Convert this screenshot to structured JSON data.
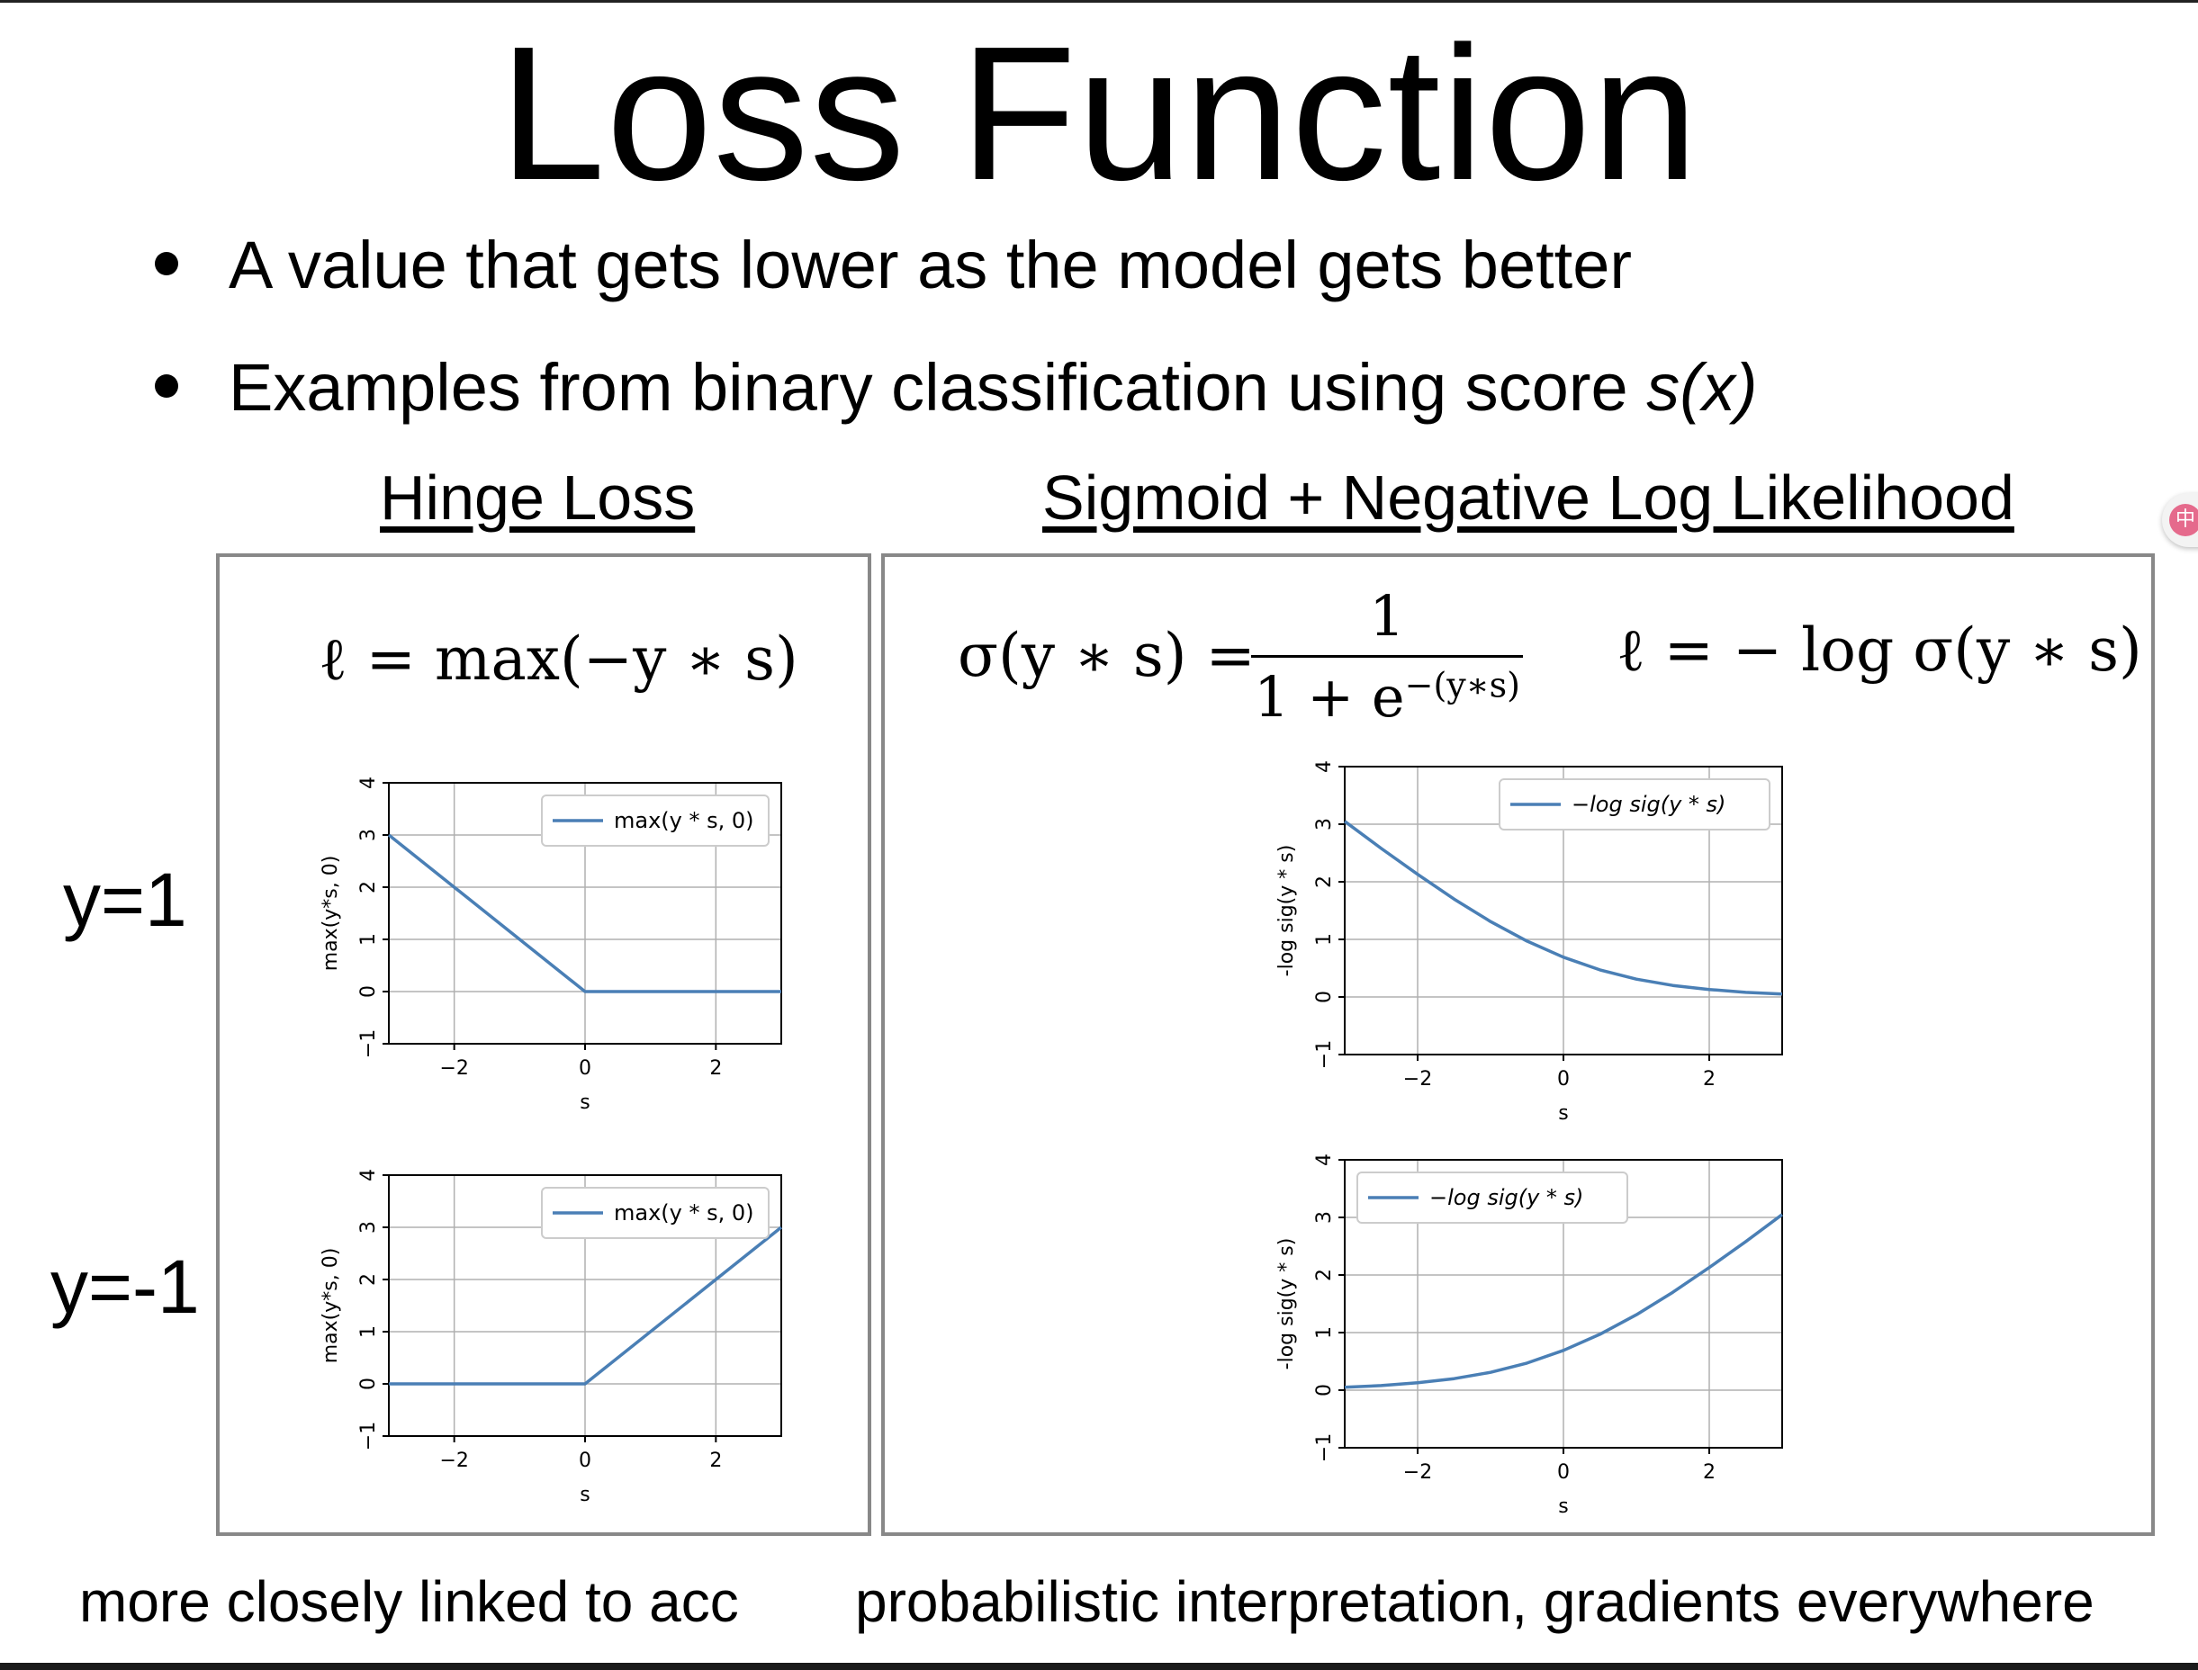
{
  "slide": {
    "title": "Loss Function",
    "bullets": [
      {
        "text": "A value that gets lower as the model gets better",
        "emphasis": ""
      },
      {
        "text": "Examples from binary classification using score ",
        "emphasis": "s(x)"
      }
    ]
  },
  "hinge": {
    "heading": "Hinge Loss",
    "formula": "ℓ = max(−y ∗ s)",
    "footer": "more closely linked to acc"
  },
  "sigmoid": {
    "heading": "Sigmoid + Negative Log Likelihood",
    "formula_left": "σ(y ∗ s) =",
    "formula_num": "1",
    "formula_den": "1 + e",
    "formula_den_exp": "−(y∗s)",
    "formula_right": "ℓ = − log σ(y ∗ s)",
    "footer": "probabilistic interpretation, gradients everywhere"
  },
  "row_labels": {
    "top": "y=1",
    "bottom": "y=-1"
  },
  "side_widget": {
    "icon": "translate-icon",
    "glyph": "中"
  },
  "colors": {
    "line": "#4a7fb5",
    "grid": "#b0b0b0",
    "panel_border": "#888888"
  },
  "chart_data": [
    {
      "type": "line",
      "panel": "hinge-top",
      "xlabel": "s",
      "ylabel": "max(y*s, 0)",
      "xlim": [
        -3,
        3
      ],
      "ylim": [
        -1,
        4
      ],
      "xticks": [
        -2,
        0,
        2
      ],
      "yticks": [
        -1,
        0,
        1,
        2,
        3,
        4
      ],
      "xtick_labels": [
        "−2",
        "0",
        "2"
      ],
      "ytick_labels": [
        "−1",
        "0",
        "1",
        "2",
        "3",
        "4"
      ],
      "grid": true,
      "legend_position": "upper-right",
      "series": [
        {
          "name": "max(y * s, 0)",
          "x": [
            -3,
            0,
            3
          ],
          "y": [
            3,
            0,
            0
          ]
        }
      ]
    },
    {
      "type": "line",
      "panel": "hinge-bottom",
      "xlabel": "s",
      "ylabel": "max(y*s, 0)",
      "xlim": [
        -3,
        3
      ],
      "ylim": [
        -1,
        4
      ],
      "xticks": [
        -2,
        0,
        2
      ],
      "yticks": [
        -1,
        0,
        1,
        2,
        3,
        4
      ],
      "xtick_labels": [
        "−2",
        "0",
        "2"
      ],
      "ytick_labels": [
        "−1",
        "0",
        "1",
        "2",
        "3",
        "4"
      ],
      "grid": true,
      "legend_position": "upper-right",
      "series": [
        {
          "name": "max(y * s, 0)",
          "x": [
            -3,
            0,
            3
          ],
          "y": [
            0,
            0,
            3
          ]
        }
      ]
    },
    {
      "type": "line",
      "panel": "sigmoid-top",
      "xlabel": "s",
      "ylabel": "-log sig(y * s)",
      "xlim": [
        -3,
        3
      ],
      "ylim": [
        -1,
        4
      ],
      "xticks": [
        -2,
        0,
        2
      ],
      "yticks": [
        -1,
        0,
        1,
        2,
        3,
        4
      ],
      "xtick_labels": [
        "−2",
        "0",
        "2"
      ],
      "ytick_labels": [
        "−1",
        "0",
        "1",
        "2",
        "3",
        "4"
      ],
      "grid": true,
      "legend_position": "upper-right",
      "series": [
        {
          "name": "−log sig(y * s)",
          "x": [
            -3,
            -2.5,
            -2,
            -1.5,
            -1,
            -0.5,
            0,
            0.5,
            1,
            1.5,
            2,
            2.5,
            3
          ],
          "y": [
            3.05,
            2.58,
            2.13,
            1.7,
            1.31,
            0.97,
            0.69,
            0.47,
            0.31,
            0.2,
            0.13,
            0.08,
            0.05
          ]
        }
      ]
    },
    {
      "type": "line",
      "panel": "sigmoid-bottom",
      "xlabel": "s",
      "ylabel": "-log sig(y * s)",
      "xlim": [
        -3,
        3
      ],
      "ylim": [
        -1,
        4
      ],
      "xticks": [
        -2,
        0,
        2
      ],
      "yticks": [
        -1,
        0,
        1,
        2,
        3,
        4
      ],
      "xtick_labels": [
        "−2",
        "0",
        "2"
      ],
      "ytick_labels": [
        "−1",
        "0",
        "1",
        "2",
        "3",
        "4"
      ],
      "grid": true,
      "legend_position": "upper-left",
      "series": [
        {
          "name": "−log sig(y * s)",
          "x": [
            -3,
            -2.5,
            -2,
            -1.5,
            -1,
            -0.5,
            0,
            0.5,
            1,
            1.5,
            2,
            2.5,
            3
          ],
          "y": [
            0.05,
            0.08,
            0.13,
            0.2,
            0.31,
            0.47,
            0.69,
            0.97,
            1.31,
            1.7,
            2.13,
            2.58,
            3.05
          ]
        }
      ]
    }
  ]
}
